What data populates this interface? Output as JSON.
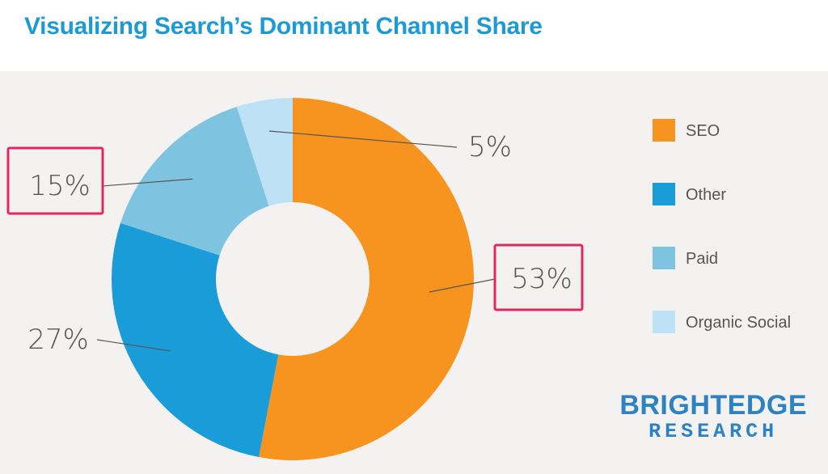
{
  "title": "Visualizing Search’s Dominant Channel Share",
  "chart_data": {
    "type": "pie",
    "title": "Visualizing Search’s Dominant Channel Share",
    "categories": [
      "SEO",
      "Other",
      "Paid",
      "Organic Social"
    ],
    "values": [
      53,
      27,
      15,
      5
    ],
    "labels": [
      "53%",
      "27%",
      "15%",
      "5%"
    ],
    "colors": [
      "#f6941f",
      "#1a9cd9",
      "#7ec4e0",
      "#bde2f6"
    ],
    "highlighted": [
      "SEO",
      "Paid"
    ],
    "highlight_color": "#e2285f",
    "donut": true,
    "legend_position": "right"
  },
  "legend": [
    "SEO",
    "Other",
    "Paid",
    "Organic Social"
  ],
  "brand": {
    "top": "BRIGHTEDGE",
    "bottom": "RESEARCH"
  }
}
